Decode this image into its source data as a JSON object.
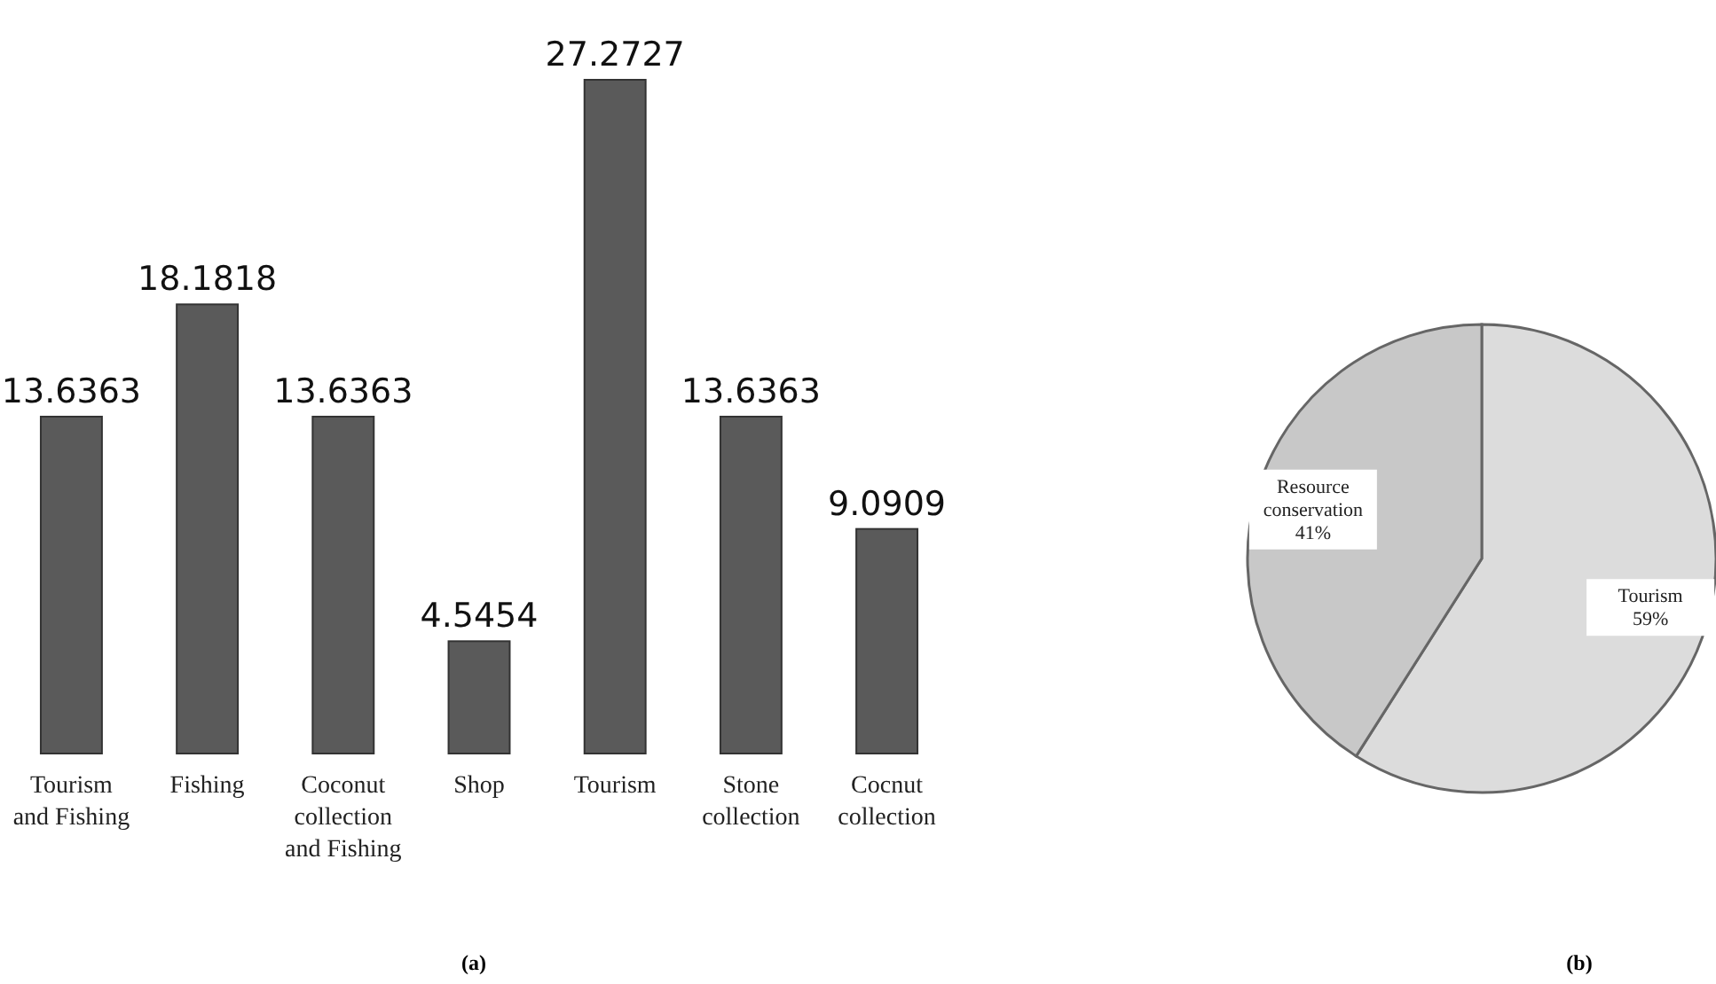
{
  "chart_data": [
    {
      "type": "bar",
      "categories": [
        "Tourism\nand Fishing",
        "Fishing",
        "Coconut\ncollection\nand Fishing",
        "Shop",
        "Tourism",
        "Stone\ncollection",
        "Cocnut\ncollection"
      ],
      "values": [
        13.6363,
        18.1818,
        13.6363,
        4.5454,
        27.2727,
        13.6363,
        9.0909
      ],
      "color": "#5a5a5a",
      "data_labels": true,
      "annotations": [
        "(a)"
      ]
    },
    {
      "type": "pie",
      "categories": [
        "Tourism",
        "Resource\nconservation"
      ],
      "values": [
        59,
        41
      ],
      "value_labels": [
        "59%",
        "41%"
      ],
      "colors": [
        "#dcdcdc",
        "#c8c8c8"
      ],
      "annotations": [
        "(b)"
      ]
    }
  ]
}
